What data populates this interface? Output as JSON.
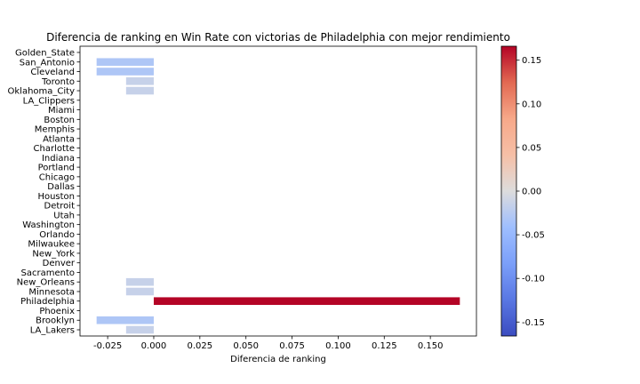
{
  "chart_data": {
    "type": "bar",
    "orientation": "horizontal",
    "title": "Diferencia de ranking en Win Rate con victorias de Philadelphia con mejor rendimiento",
    "xlabel": "Diferencia de ranking",
    "ylabel": "",
    "xlim": [
      -0.04,
      0.175
    ],
    "x_ticks": [
      "-0.025",
      "0.000",
      "0.025",
      "0.050",
      "0.075",
      "0.100",
      "0.125",
      "0.150"
    ],
    "x_tick_values": [
      -0.025,
      0.0,
      0.025,
      0.05,
      0.075,
      0.1,
      0.125,
      0.15
    ],
    "categories": [
      "Golden_State",
      "San_Antonio",
      "Cleveland",
      "Toronto",
      "Oklahoma_City",
      "LA_Clippers",
      "Miami",
      "Boston",
      "Memphis",
      "Atlanta",
      "Charlotte",
      "Indiana",
      "Portland",
      "Chicago",
      "Dallas",
      "Houston",
      "Detroit",
      "Utah",
      "Washington",
      "Orlando",
      "Milwaukee",
      "New_York",
      "Denver",
      "Sacramento",
      "New_Orleans",
      "Minnesota",
      "Philadelphia",
      "Phoenix",
      "Brooklyn",
      "LA_Lakers"
    ],
    "values": [
      0,
      -0.031,
      -0.031,
      -0.015,
      -0.015,
      0,
      0,
      0,
      0,
      0,
      0,
      0,
      0,
      0,
      0,
      0,
      0,
      0,
      0,
      0,
      0,
      0,
      0,
      0,
      -0.015,
      -0.015,
      0.166,
      0,
      -0.031,
      -0.015
    ],
    "colormap": "coolwarm",
    "colorbar": {
      "range": [
        -0.166,
        0.166
      ],
      "ticks": [
        "-0.15",
        "-0.10",
        "-0.05",
        "0.00",
        "0.05",
        "0.10",
        "0.15"
      ],
      "tick_values": [
        -0.15,
        -0.1,
        -0.05,
        0.0,
        0.05,
        0.1,
        0.15
      ]
    },
    "grid": false,
    "legend": "none"
  }
}
